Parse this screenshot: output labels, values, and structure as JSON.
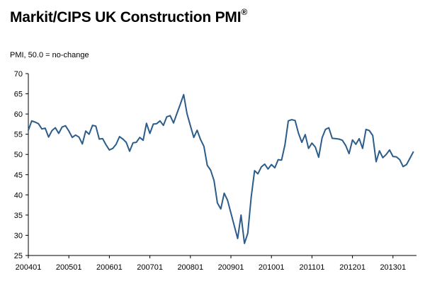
{
  "title": "Markit/CIPS UK Construction PMI",
  "title_mark": "®",
  "subtitle": "PMI, 50.0 = no-change",
  "colors": {
    "line": "#2b5c8a",
    "axis": "#000000",
    "grid": "#ffffff"
  },
  "chart_data": {
    "type": "line",
    "title": "Markit/CIPS UK Construction PMI",
    "ylabel": "PMI, 50.0 = no-change",
    "xlabel": "",
    "ylim": [
      25,
      70
    ],
    "yticks": [
      25,
      30,
      35,
      40,
      45,
      50,
      55,
      60,
      65,
      70
    ],
    "xticks": [
      "200401",
      "200501",
      "200601",
      "200701",
      "200801",
      "200901",
      "201001",
      "201101",
      "201201",
      "201301"
    ],
    "x_start": "2004-01",
    "grid": false,
    "legend": "none",
    "series": [
      {
        "values": [
          56.0,
          58.3,
          58.0,
          57.6,
          56.3,
          56.5,
          54.3,
          55.9,
          56.6,
          55.2,
          56.8,
          57.1,
          55.8,
          54.2,
          54.8,
          54.3,
          52.6,
          55.8,
          55.0,
          57.2,
          57.0,
          53.8,
          53.9,
          52.4,
          51.1,
          51.5,
          52.5,
          54.4,
          53.8,
          53.0,
          50.8,
          52.9,
          53.0,
          54.2,
          53.5,
          57.7,
          55.2,
          57.5,
          57.6,
          58.3,
          57.2,
          59.3,
          59.6,
          57.8,
          60.1,
          62.4,
          64.8,
          60.1,
          57.1,
          54.2,
          56.0,
          53.7,
          52.0,
          47.3,
          46.1,
          43.5,
          38.0,
          36.5,
          40.4,
          38.7,
          35.5,
          32.3,
          29.2,
          35.0,
          28.0,
          30.5,
          39.4,
          46.0,
          45.2,
          46.9,
          47.6,
          46.4,
          47.5,
          46.7,
          48.7,
          48.6,
          52.4,
          58.3,
          58.6,
          58.4,
          55.3,
          53.0,
          54.9,
          51.5,
          52.8,
          51.8,
          49.3,
          54.1,
          56.2,
          56.6,
          54.0,
          53.9,
          53.8,
          53.5,
          52.2,
          50.2,
          53.6,
          52.5,
          53.9,
          51.5,
          56.2,
          55.9,
          54.7,
          48.2,
          50.9,
          49.2,
          50.0,
          51.1,
          49.5,
          49.4,
          48.7,
          47.0,
          47.5,
          49.0,
          50.6
        ]
      }
    ]
  }
}
